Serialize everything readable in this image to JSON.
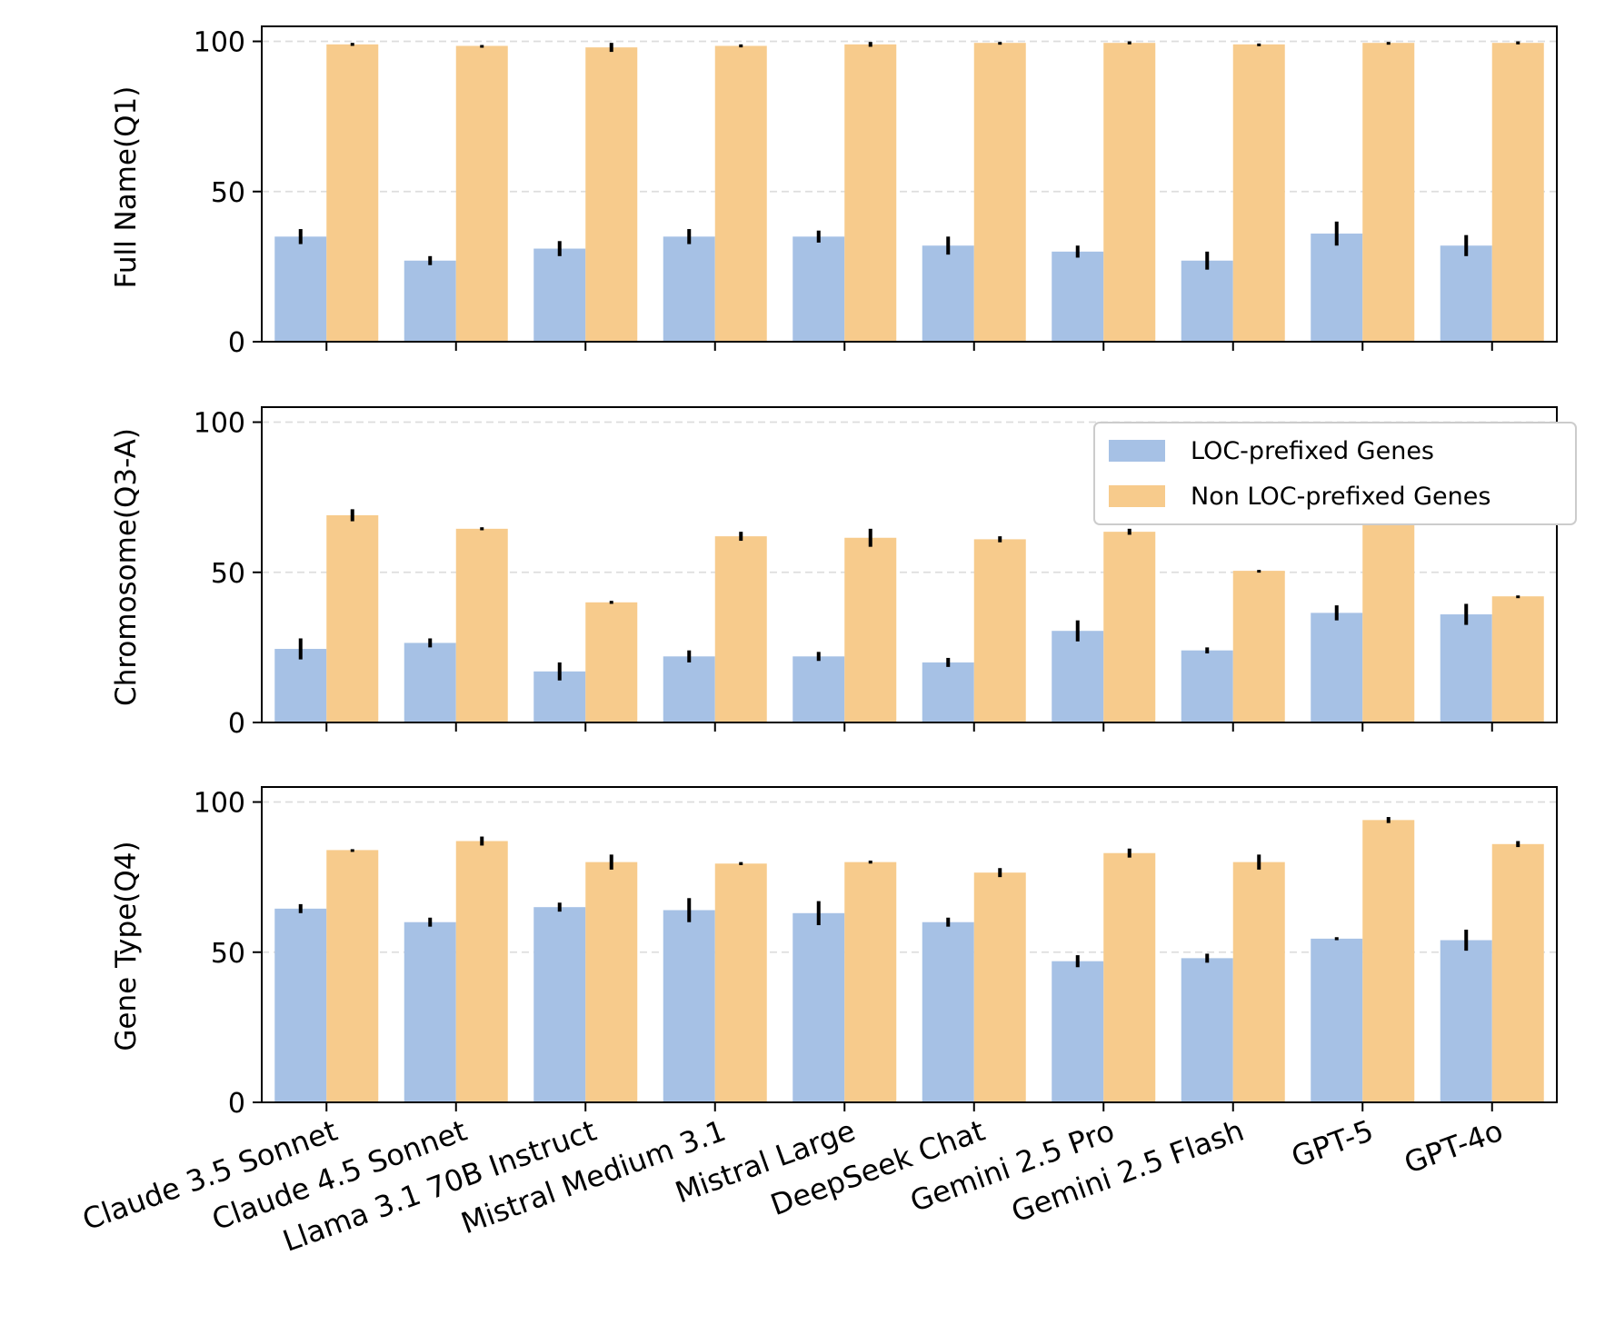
{
  "chart_data": {
    "type": "bar",
    "categories": [
      "Claude 3.5 Sonnet",
      "Claude 4.5 Sonnet",
      "Llama 3.1 70B Instruct",
      "Mistral Medium 3.1",
      "Mistral Large",
      "DeepSeek Chat",
      "Gemini 2.5 Pro",
      "Gemini 2.5 Flash",
      "GPT-5",
      "GPT-4o"
    ],
    "series_colors": [
      "#a6c1e5",
      "#f7cb8c"
    ],
    "error_color": "#000000",
    "grid_color": "#dddddd",
    "yticks": [
      0,
      50,
      100
    ],
    "ylim": [
      0,
      105
    ],
    "legend": {
      "placement": "upper right (panel 2)",
      "entries": [
        "LOC-prefixed Genes",
        "Non LOC-prefixed Genes"
      ]
    },
    "panels": [
      {
        "ylabel": "Full Name(Q1)",
        "series": [
          {
            "name": "LOC-prefixed Genes",
            "values": [
              35,
              27,
              31,
              35,
              35,
              32,
              30,
              27,
              36,
              32
            ],
            "errors": [
              2.5,
              1.5,
              2.5,
              2.5,
              2,
              3,
              2,
              3,
              4,
              3.5
            ]
          },
          {
            "name": "Non LOC-prefixed Genes",
            "values": [
              99,
              98.5,
              98,
              98.5,
              99,
              99.5,
              99.5,
              99,
              99.5,
              99.5
            ],
            "errors": [
              0.5,
              0.3,
              1.5,
              0.5,
              0.8,
              0.3,
              0.5,
              0.3,
              0.3,
              0.5
            ]
          }
        ]
      },
      {
        "ylabel": "Chromosome(Q3-A)",
        "series": [
          {
            "name": "LOC-prefixed Genes",
            "values": [
              24.5,
              26.5,
              17,
              22,
              22,
              20,
              30.5,
              24,
              36.5,
              36
            ],
            "errors": [
              3.5,
              1.5,
              3,
              2,
              1.5,
              1.5,
              3.5,
              1,
              2.5,
              3.5
            ]
          },
          {
            "name": "Non LOC-prefixed Genes",
            "values": [
              69,
              64.5,
              40,
              62,
              61.5,
              61,
              63.5,
              50.5,
              69,
              42
            ],
            "errors": [
              2,
              0.5,
              0.5,
              1.5,
              3,
              1,
              1,
              0.3,
              0.3,
              0.3
            ]
          }
        ]
      },
      {
        "ylabel": "Gene Type(Q4)",
        "series": [
          {
            "name": "LOC-prefixed Genes",
            "values": [
              64.5,
              60,
              65,
              64,
              63,
              60,
              47,
              48,
              54.5,
              54
            ],
            "errors": [
              1.5,
              1.5,
              1.5,
              4,
              4,
              1.5,
              2,
              1.5,
              0.5,
              3.5
            ]
          },
          {
            "name": "Non LOC-prefixed Genes",
            "values": [
              84,
              87,
              80,
              79.5,
              80,
              76.5,
              83,
              80,
              94,
              86
            ],
            "errors": [
              0.3,
              1.5,
              2.5,
              0.5,
              0.5,
              1.5,
              1.5,
              2.5,
              1,
              1
            ]
          }
        ]
      }
    ]
  }
}
